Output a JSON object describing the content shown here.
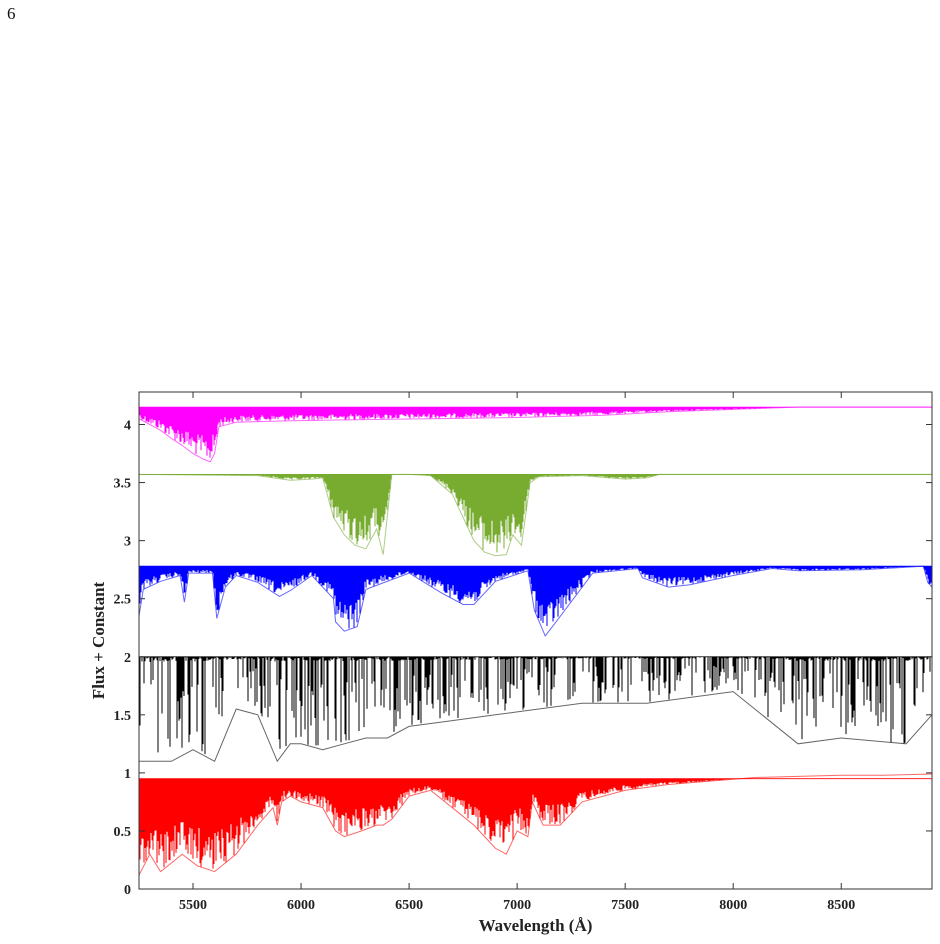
{
  "page_number": "6",
  "chart_data": {
    "type": "line",
    "xlabel": "Wavelength (Å)",
    "ylabel": "Flux + Constant",
    "xlim": [
      5250,
      8920
    ],
    "ylim": [
      0,
      4.28
    ],
    "xticks": [
      5500,
      6000,
      6500,
      7000,
      7500,
      8000,
      8500
    ],
    "yticks": [
      0,
      0.5,
      1,
      1.5,
      2,
      2.5,
      3,
      3.5,
      4
    ],
    "ytick_labels": [
      "0",
      "0.5",
      "1",
      "1.5",
      "2",
      "2.5",
      "3",
      "3.5",
      "4"
    ],
    "xtick_labels": [
      "5500",
      "6000",
      "6500",
      "7000",
      "7500",
      "8000",
      "8500"
    ],
    "grid": false,
    "legend": "none",
    "series": [
      {
        "color": "#ff00ff",
        "offset": 4.15,
        "continuum": 4.15,
        "x": [
          5250,
          5300,
          5350,
          5400,
          5450,
          5500,
          5550,
          5580,
          5600,
          5620,
          5700,
          5900,
          6200,
          6600,
          7000,
          7400,
          7700,
          8000,
          8300,
          8920
        ],
        "y": [
          4.05,
          4.0,
          3.95,
          3.88,
          3.82,
          3.75,
          3.7,
          3.68,
          3.75,
          3.98,
          4.02,
          4.03,
          4.04,
          4.05,
          4.06,
          4.08,
          4.11,
          4.13,
          4.15,
          4.15
        ]
      },
      {
        "color": "#77ac30",
        "offset": 3.57,
        "continuum": 3.57,
        "x": [
          5250,
          5800,
          5950,
          6050,
          6100,
          6150,
          6200,
          6250,
          6300,
          6350,
          6380,
          6420,
          6500,
          6600,
          6700,
          6800,
          6850,
          6900,
          6950,
          6980,
          7020,
          7060,
          7100,
          7300,
          7500,
          7600,
          7660,
          8920
        ],
        "y": [
          3.57,
          3.56,
          3.52,
          3.53,
          3.54,
          3.2,
          3.05,
          2.96,
          2.93,
          3.1,
          2.88,
          3.57,
          3.57,
          3.56,
          3.4,
          3.0,
          2.9,
          2.87,
          2.88,
          3.05,
          2.96,
          3.5,
          3.55,
          3.56,
          3.53,
          3.54,
          3.57,
          3.57
        ]
      },
      {
        "color": "#0000ff",
        "offset": 2.78,
        "continuum": 2.78,
        "x": [
          5250,
          5270,
          5350,
          5440,
          5460,
          5480,
          5590,
          5610,
          5650,
          5700,
          5800,
          5900,
          5950,
          6050,
          6150,
          6160,
          6200,
          6260,
          6300,
          6500,
          6650,
          6750,
          6800,
          6900,
          7050,
          7080,
          7130,
          7180,
          7350,
          7560,
          7580,
          7700,
          7800,
          8000,
          8180,
          8300,
          8600,
          8880,
          8900,
          8920
        ],
        "y": [
          2.35,
          2.58,
          2.65,
          2.7,
          2.47,
          2.72,
          2.72,
          2.33,
          2.6,
          2.7,
          2.64,
          2.52,
          2.57,
          2.7,
          2.5,
          2.3,
          2.22,
          2.26,
          2.58,
          2.72,
          2.55,
          2.45,
          2.45,
          2.65,
          2.74,
          2.4,
          2.18,
          2.3,
          2.72,
          2.76,
          2.68,
          2.6,
          2.62,
          2.7,
          2.76,
          2.74,
          2.75,
          2.78,
          2.64,
          2.6
        ]
      },
      {
        "color": "#000000",
        "offset": 2.0,
        "continuum": 2.0,
        "x": [
          5250,
          5300,
          5400,
          5500,
          5600,
          5700,
          5800,
          5890,
          5950,
          6000,
          6100,
          6200,
          6300,
          6400,
          6500,
          6700,
          6900,
          7100,
          7300,
          7600,
          8000,
          8300,
          8500,
          8800,
          8920
        ],
        "y": [
          1.1,
          1.1,
          1.1,
          1.2,
          1.1,
          1.55,
          1.5,
          1.1,
          1.25,
          1.25,
          1.2,
          1.25,
          1.3,
          1.3,
          1.4,
          1.45,
          1.5,
          1.55,
          1.6,
          1.6,
          1.7,
          1.25,
          1.3,
          1.25,
          1.5
        ]
      },
      {
        "color": "#ff0000",
        "offset": 1.0,
        "continuum": 0.95,
        "x": [
          5250,
          5300,
          5350,
          5450,
          5520,
          5600,
          5700,
          5800,
          5870,
          5890,
          5910,
          5950,
          6000,
          6100,
          6160,
          6200,
          6280,
          6350,
          6380,
          6420,
          6500,
          6600,
          6700,
          6800,
          6900,
          6950,
          7000,
          7050,
          7070,
          7120,
          7200,
          7300,
          7500,
          7700,
          7900,
          8100,
          8300,
          8500,
          8700,
          8920
        ],
        "y": [
          0.12,
          0.3,
          0.15,
          0.3,
          0.2,
          0.15,
          0.3,
          0.55,
          0.7,
          0.55,
          0.75,
          0.8,
          0.75,
          0.7,
          0.5,
          0.45,
          0.5,
          0.55,
          0.55,
          0.6,
          0.8,
          0.85,
          0.7,
          0.55,
          0.35,
          0.3,
          0.5,
          0.45,
          0.75,
          0.55,
          0.55,
          0.75,
          0.85,
          0.9,
          0.93,
          0.96,
          0.97,
          0.98,
          0.98,
          0.99
        ]
      }
    ]
  }
}
